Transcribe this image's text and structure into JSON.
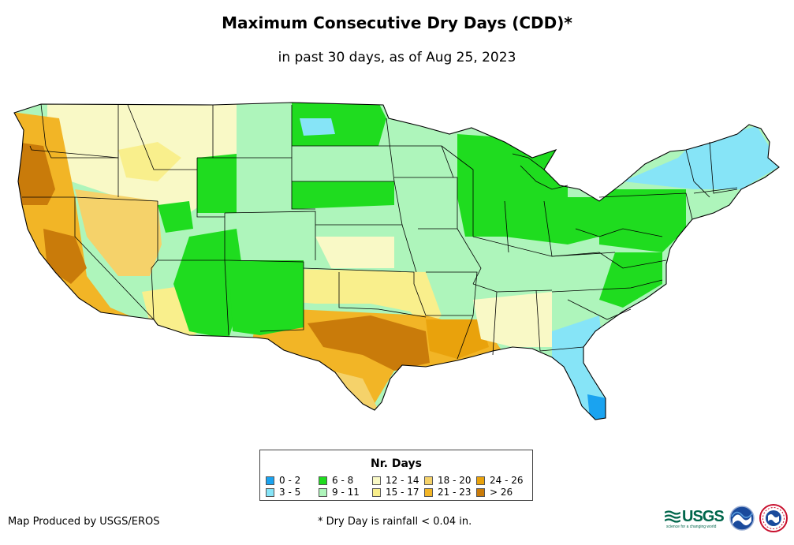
{
  "title": "Maximum Consecutive Dry Days (CDD)*",
  "subtitle": "in past 30 days, as of Aug 25, 2023",
  "legend": {
    "title": "Nr. Days",
    "items": [
      {
        "label": "0 - 2",
        "color": "#1aa3f0"
      },
      {
        "label": "3 - 5",
        "color": "#86e4f7"
      },
      {
        "label": "6 - 8",
        "color": "#1fdc1f"
      },
      {
        "label": "9 - 11",
        "color": "#aef5bb"
      },
      {
        "label": "12 - 14",
        "color": "#f9f9c6"
      },
      {
        "label": "15 - 17",
        "color": "#f9ef8c"
      },
      {
        "label": "18 - 20",
        "color": "#f5d26a"
      },
      {
        "label": "21 - 23",
        "color": "#f2b526"
      },
      {
        "label": "24 - 26",
        "color": "#e9a20c"
      },
      {
        "label": "> 26",
        "color": "#c97b0a"
      }
    ]
  },
  "credit": "Map Produced by USGS/EROS",
  "footnote": "* Dry Day is rainfall < 0.04 in.",
  "logos": {
    "usgs": "USGS",
    "usgs_tagline": "science for a changing world",
    "noaa": "noaa",
    "nws": "NATIONAL WEATHER SERVICE"
  }
}
